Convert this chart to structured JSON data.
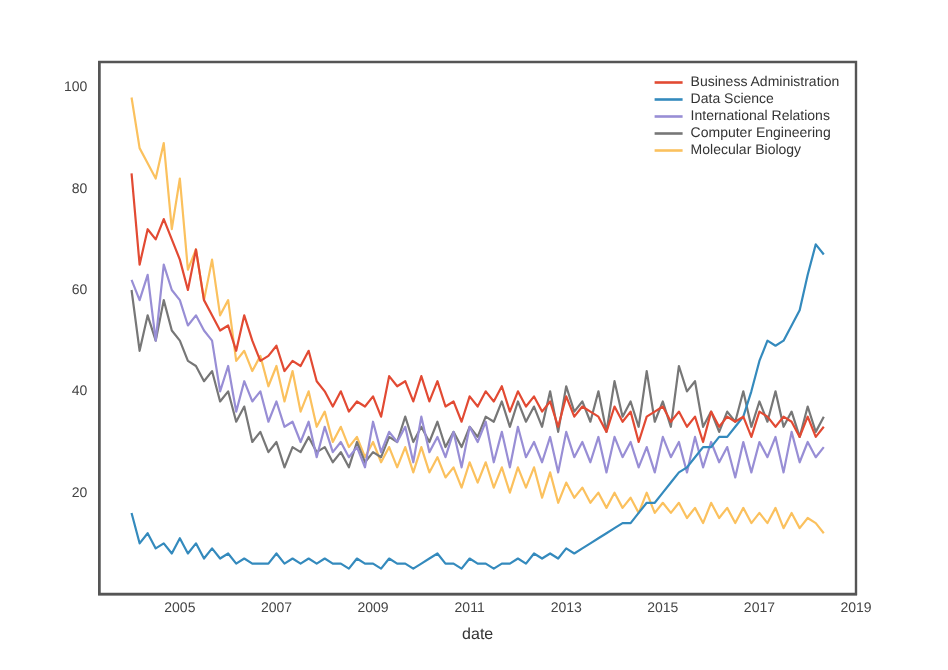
{
  "chart_data": {
    "type": "line",
    "xlabel": "date",
    "x": [
      "2004-01",
      "2004-03",
      "2004-05",
      "2004-07",
      "2004-09",
      "2004-11",
      "2005-01",
      "2005-03",
      "2005-05",
      "2005-07",
      "2005-09",
      "2005-11",
      "2006-01",
      "2006-03",
      "2006-05",
      "2006-07",
      "2006-09",
      "2006-11",
      "2007-01",
      "2007-03",
      "2007-05",
      "2007-07",
      "2007-09",
      "2007-11",
      "2008-01",
      "2008-03",
      "2008-05",
      "2008-07",
      "2008-09",
      "2008-11",
      "2009-01",
      "2009-03",
      "2009-05",
      "2009-07",
      "2009-09",
      "2009-11",
      "2010-01",
      "2010-03",
      "2010-05",
      "2010-07",
      "2010-09",
      "2010-11",
      "2011-01",
      "2011-03",
      "2011-05",
      "2011-07",
      "2011-09",
      "2011-11",
      "2012-01",
      "2012-03",
      "2012-05",
      "2012-07",
      "2012-09",
      "2012-11",
      "2013-01",
      "2013-03",
      "2013-05",
      "2013-07",
      "2013-09",
      "2013-11",
      "2014-01",
      "2014-03",
      "2014-05",
      "2014-07",
      "2014-09",
      "2014-11",
      "2015-01",
      "2015-03",
      "2015-05",
      "2015-07",
      "2015-09",
      "2015-11",
      "2016-01",
      "2016-03",
      "2016-05",
      "2016-07",
      "2016-09",
      "2016-11",
      "2017-01",
      "2017-03",
      "2017-05",
      "2017-07",
      "2017-09",
      "2017-11",
      "2018-01",
      "2018-03",
      "2018-05"
    ],
    "series": [
      {
        "name": "Business Administration",
        "color": "#e24a33",
        "values": [
          83,
          65,
          72,
          70,
          74,
          70,
          66,
          60,
          68,
          58,
          55,
          52,
          53,
          48,
          55,
          50,
          46,
          47,
          49,
          44,
          46,
          45,
          48,
          42,
          40,
          37,
          40,
          36,
          38,
          37,
          39,
          35,
          43,
          41,
          42,
          38,
          43,
          38,
          42,
          37,
          38,
          34,
          39,
          37,
          40,
          38,
          41,
          36,
          40,
          37,
          39,
          36,
          38,
          33,
          39,
          35,
          37,
          36,
          35,
          32,
          37,
          34,
          36,
          30,
          35,
          36,
          37,
          34,
          36,
          33,
          35,
          30,
          36,
          33,
          35,
          34,
          35,
          31,
          36,
          35,
          33,
          35,
          34,
          31,
          35,
          31,
          33
        ]
      },
      {
        "name": "Data Science",
        "color": "#348abd",
        "values": [
          16,
          10,
          12,
          9,
          10,
          8,
          11,
          8,
          10,
          7,
          9,
          7,
          8,
          6,
          7,
          6,
          6,
          6,
          8,
          6,
          7,
          6,
          7,
          6,
          7,
          6,
          6,
          5,
          7,
          6,
          6,
          5,
          7,
          6,
          6,
          5,
          6,
          7,
          8,
          6,
          6,
          5,
          7,
          6,
          6,
          5,
          6,
          6,
          7,
          6,
          8,
          7,
          8,
          7,
          9,
          8,
          9,
          10,
          11,
          12,
          13,
          14,
          14,
          16,
          18,
          18,
          20,
          22,
          24,
          25,
          27,
          29,
          29,
          31,
          31,
          33,
          35,
          40,
          46,
          50,
          49,
          50,
          53,
          56,
          63,
          69,
          67
        ]
      },
      {
        "name": "International Relations",
        "color": "#988ed5",
        "values": [
          62,
          58,
          63,
          50,
          65,
          60,
          58,
          53,
          55,
          52,
          50,
          40,
          45,
          36,
          42,
          38,
          40,
          34,
          38,
          33,
          34,
          30,
          34,
          27,
          33,
          28,
          30,
          27,
          29,
          25,
          34,
          28,
          32,
          30,
          33,
          26,
          35,
          28,
          31,
          27,
          32,
          25,
          33,
          30,
          34,
          26,
          32,
          25,
          33,
          27,
          30,
          26,
          31,
          24,
          32,
          27,
          30,
          26,
          31,
          24,
          31,
          27,
          30,
          25,
          29,
          24,
          31,
          27,
          30,
          24,
          31,
          25,
          30,
          26,
          29,
          23,
          30,
          24,
          30,
          27,
          31,
          24,
          32,
          26,
          30,
          27,
          29
        ]
      },
      {
        "name": "Computer Engineering",
        "color": "#777777",
        "values": [
          60,
          48,
          55,
          50,
          58,
          52,
          50,
          46,
          45,
          42,
          44,
          38,
          40,
          34,
          37,
          30,
          32,
          28,
          30,
          25,
          29,
          28,
          31,
          28,
          29,
          26,
          28,
          25,
          30,
          26,
          28,
          27,
          31,
          30,
          35,
          30,
          33,
          30,
          34,
          29,
          32,
          29,
          33,
          31,
          35,
          34,
          38,
          33,
          38,
          34,
          37,
          33,
          40,
          32,
          41,
          36,
          38,
          34,
          40,
          32,
          42,
          35,
          38,
          33,
          44,
          34,
          38,
          33,
          45,
          40,
          42,
          33,
          36,
          32,
          36,
          34,
          40,
          33,
          38,
          34,
          40,
          33,
          36,
          31,
          37,
          32,
          35
        ]
      },
      {
        "name": "Molecular Biology",
        "color": "#fbc15e",
        "values": [
          98,
          88,
          85,
          82,
          89,
          72,
          82,
          64,
          68,
          58,
          66,
          55,
          58,
          46,
          48,
          44,
          47,
          41,
          45,
          38,
          44,
          36,
          40,
          33,
          36,
          30,
          33,
          29,
          31,
          27,
          30,
          26,
          29,
          25,
          29,
          24,
          29,
          24,
          27,
          23,
          25,
          21,
          26,
          22,
          26,
          21,
          25,
          20,
          25,
          21,
          25,
          19,
          24,
          18,
          22,
          19,
          21,
          18,
          20,
          17,
          20,
          17,
          19,
          16,
          20,
          16,
          18,
          16,
          18,
          15,
          17,
          14,
          18,
          15,
          17,
          14,
          17,
          14,
          16,
          14,
          17,
          13,
          16,
          13,
          15,
          14,
          12
        ]
      }
    ],
    "xlim": [
      "2003-05",
      "2019-01"
    ],
    "xticks": [
      "2005",
      "2007",
      "2009",
      "2011",
      "2013",
      "2015",
      "2017",
      "2019"
    ],
    "ylim": [
      0,
      105
    ],
    "yticks": [
      20,
      40,
      60,
      80,
      100
    ],
    "grid": false,
    "legend": "top right",
    "line_style": "solid",
    "marker": "none"
  }
}
